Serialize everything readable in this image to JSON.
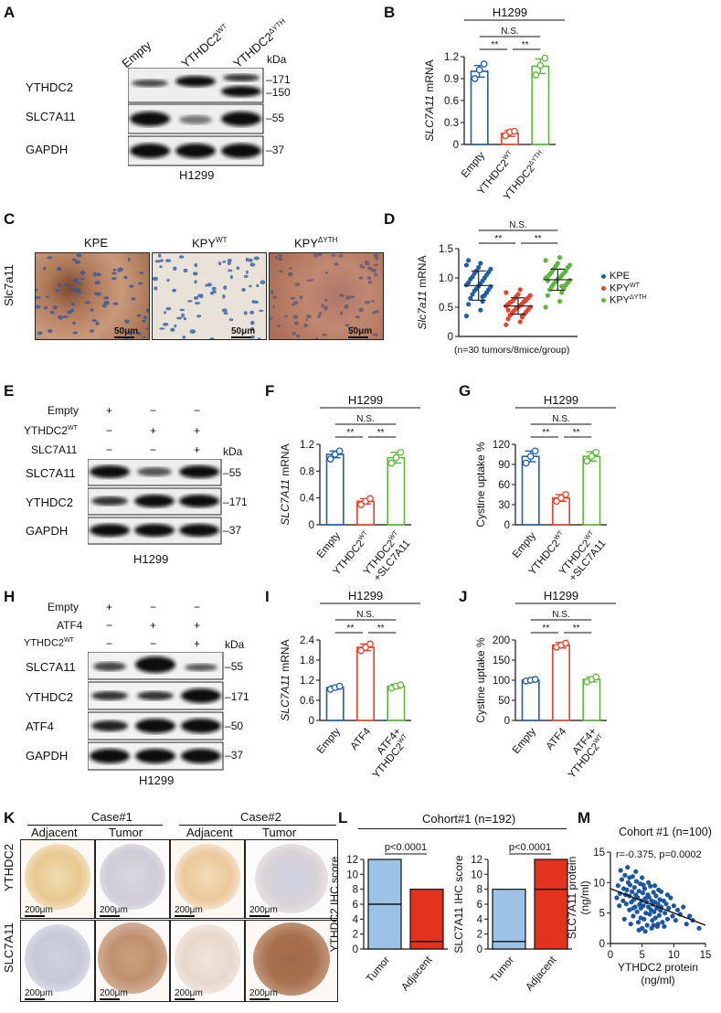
{
  "panels": {
    "A": {
      "letter": "A",
      "lanes": [
        "Empty",
        "YTHDC2WT",
        "YTHDC2ΔYTH"
      ],
      "lane_labels": {
        "empty": "Empty",
        "wt_main": "YTHDC2",
        "wt_sup": "WT",
        "dyth_main": "YTHDC2",
        "dyth_sup": "ΔYTH"
      },
      "kda_label": "kDa",
      "rows": [
        "YTHDC2",
        "SLC7A11",
        "GAPDH"
      ],
      "markers": [
        "171",
        "150",
        "55",
        "37"
      ],
      "cell_line": "H1299"
    },
    "B": {
      "letter": "B"
    },
    "C": {
      "letter": "C",
      "titles": {
        "kpe": "KPE",
        "wt_main": "KPY",
        "wt_sup": "WT",
        "dyth_main": "KPY",
        "dyth_sup": "ΔYTH"
      },
      "ylabel": "Slc7a11",
      "scalebar": "50μm"
    },
    "D": {
      "letter": "D",
      "note": "(n=30 tumors/8mice/group)",
      "legend": [
        {
          "main": "KPE",
          "sup": ""
        },
        {
          "main": "KPY",
          "sup": "WT"
        },
        {
          "main": "KPY",
          "sup": "ΔYTH"
        }
      ]
    },
    "E": {
      "letter": "E",
      "conditions": [
        "Empty",
        "YTHDC2WT",
        "SLC7A11"
      ],
      "cond_main": {
        "empty": "Empty",
        "wt_main": "YTHDC2",
        "wt_sup": "WT",
        "slc": "SLC7A11"
      },
      "signs": [
        [
          "+",
          "−",
          "−"
        ],
        [
          "−",
          "+",
          "+"
        ],
        [
          "−",
          "−",
          "+"
        ]
      ],
      "kda_label": "kDa",
      "rows": [
        "SLC7A11",
        "YTHDC2",
        "GAPDH"
      ],
      "markers": [
        "55",
        "171",
        "37"
      ],
      "cell_line": "H1299"
    },
    "F": {
      "letter": "F"
    },
    "G": {
      "letter": "G"
    },
    "H": {
      "letter": "H",
      "cond_main": {
        "empty": "Empty",
        "atf4": "ATF4",
        "wt_main": "YTHDC2",
        "wt_sup": "WT"
      },
      "signs": [
        [
          "+",
          "−",
          "−"
        ],
        [
          "−",
          "+",
          "+"
        ],
        [
          "−",
          "−",
          "+"
        ]
      ],
      "kda_label": "kDa",
      "rows": [
        "SLC7A11",
        "YTHDC2",
        "ATF4",
        "GAPDH"
      ],
      "markers": [
        "55",
        "171",
        "50",
        "37"
      ],
      "cell_line": "H1299"
    },
    "I": {
      "letter": "I"
    },
    "J": {
      "letter": "J"
    },
    "K": {
      "letter": "K",
      "cases": [
        "Case#1",
        "Case#2"
      ],
      "columns": [
        "Adjacent",
        "Tumor",
        "Adjacent",
        "Tumor"
      ],
      "rows": [
        "YTHDC2",
        "SLC7A11"
      ],
      "scalebar": "200μm"
    },
    "L": {
      "letter": "L",
      "cohort": "Cohort#1 (n=192)"
    },
    "M": {
      "letter": "M"
    }
  },
  "colors": {
    "blue": "#1f5fa8",
    "red": "#e8412c",
    "green": "#5cb83a",
    "light_blue": "#9cc3e6",
    "red_fill": "#e3321e",
    "dot_blue": "#1b56a0"
  },
  "chart_data": [
    {
      "id": "B",
      "type": "bar",
      "title": "H1299",
      "ylabel": "SLC7A11 mRNA",
      "ylabel_italic": "SLC7A11",
      "ylabel_rest": " mRNA",
      "categories": [
        {
          "main": "Empty",
          "sup": ""
        },
        {
          "main": "YTHDC2",
          "sup": "WT"
        },
        {
          "main": "YTHDC2",
          "sup": "ΔYTH"
        }
      ],
      "values": [
        1.0,
        0.15,
        1.07
      ],
      "errors": [
        0.08,
        0.04,
        0.1
      ],
      "points": [
        [
          0.9,
          1.02,
          1.1
        ],
        [
          0.12,
          0.17,
          0.18
        ],
        [
          0.95,
          1.08,
          1.18
        ]
      ],
      "ylim": [
        0,
        1.2
      ],
      "yticks": [
        "0",
        "0.3",
        "0.6",
        "0.9",
        "1.2"
      ],
      "ytick_values": [
        0,
        0.3,
        0.6,
        0.9,
        1.2
      ],
      "sig": [
        "N.S.",
        "**",
        "**"
      ]
    },
    {
      "id": "D",
      "type": "scatter",
      "ylabel": "Slc7a11 mRNA",
      "ylabel_italic": "Slc7a11",
      "ylabel_rest": "  mRNA",
      "series": [
        {
          "mean": 0.87,
          "sd": 0.25,
          "values": [
            0.35,
            0.45,
            0.55,
            0.6,
            0.65,
            0.7,
            0.72,
            0.75,
            0.78,
            0.8,
            0.82,
            0.85,
            0.86,
            0.88,
            0.9,
            0.92,
            0.95,
            0.98,
            1.0,
            1.02,
            1.05,
            1.08,
            1.1,
            1.12,
            1.15,
            1.18,
            1.22,
            1.25,
            1.3,
            0.68
          ]
        },
        {
          "mean": 0.52,
          "sd": 0.14,
          "values": [
            0.2,
            0.25,
            0.3,
            0.33,
            0.36,
            0.38,
            0.4,
            0.42,
            0.44,
            0.46,
            0.48,
            0.5,
            0.5,
            0.52,
            0.53,
            0.55,
            0.56,
            0.58,
            0.6,
            0.6,
            0.62,
            0.64,
            0.66,
            0.68,
            0.7,
            0.72,
            0.75,
            0.8,
            0.45,
            0.35
          ]
        },
        {
          "mean": 0.97,
          "sd": 0.18,
          "values": [
            0.5,
            0.6,
            0.7,
            0.75,
            0.8,
            0.82,
            0.85,
            0.88,
            0.9,
            0.92,
            0.94,
            0.96,
            0.98,
            1.0,
            1.0,
            1.02,
            1.04,
            1.06,
            1.08,
            1.1,
            1.12,
            1.15,
            1.18,
            1.2,
            1.22,
            1.25,
            1.3,
            1.35,
            0.95,
            0.86
          ]
        }
      ],
      "ylim": [
        0,
        1.5
      ],
      "yticks": [
        "0",
        "0.5",
        "1.0",
        "1.5"
      ],
      "ytick_values": [
        0,
        0.5,
        1.0,
        1.5
      ],
      "sig": [
        "N.S.",
        "**",
        "**"
      ]
    },
    {
      "id": "F",
      "type": "bar",
      "title": "H1299",
      "ylabel_italic": "SLC7A11",
      "ylabel_rest": " mRNA",
      "categories": [
        {
          "main": "Empty",
          "sup": "",
          "line2": ""
        },
        {
          "main": "YTHDC2",
          "sup": "WT",
          "line2": ""
        },
        {
          "main": "YTHDC2",
          "sup": "WT",
          "line2": "+SLC7A11"
        }
      ],
      "values": [
        1.05,
        0.35,
        1.0
      ],
      "errors": [
        0.05,
        0.04,
        0.08
      ],
      "points": [
        [
          0.98,
          1.05,
          1.1
        ],
        [
          0.3,
          0.35,
          0.39
        ],
        [
          0.92,
          1.0,
          1.08
        ]
      ],
      "ylim": [
        0,
        1.2
      ],
      "yticks": [
        "0",
        "0.4",
        "0.8",
        "1.2"
      ],
      "ytick_values": [
        0,
        0.4,
        0.8,
        1.2
      ],
      "sig": [
        "N.S.",
        "**",
        "**"
      ]
    },
    {
      "id": "G",
      "type": "bar",
      "title": "H1299",
      "ylabel_italic": "",
      "ylabel_rest": "Cystine uptake %",
      "categories": [
        {
          "main": "Empty",
          "sup": "",
          "line2": ""
        },
        {
          "main": "YTHDC2",
          "sup": "WT",
          "line2": ""
        },
        {
          "main": "YTHDC2",
          "sup": "WT",
          "line2": "+SLC7A11"
        }
      ],
      "values": [
        102,
        40,
        102
      ],
      "errors": [
        8,
        5,
        7
      ],
      "points": [
        [
          92,
          102,
          110
        ],
        [
          35,
          40,
          45
        ],
        [
          95,
          102,
          108
        ]
      ],
      "ylim": [
        0,
        120
      ],
      "yticks": [
        "0",
        "30",
        "60",
        "90",
        "120"
      ],
      "ytick_values": [
        0,
        30,
        60,
        90,
        120
      ],
      "sig": [
        "N.S.",
        "**",
        "**"
      ]
    },
    {
      "id": "I",
      "type": "bar",
      "title": "H1299",
      "ylabel_italic": "SLC7A11",
      "ylabel_rest": " mRNA",
      "categories": [
        {
          "main": "Empty",
          "sup": "",
          "line2": ""
        },
        {
          "main": "ATF4",
          "sup": "",
          "line2": ""
        },
        {
          "main": "ATF4+",
          "sup": "",
          "line2": "YTHDC2",
          "line2sup": "WT"
        }
      ],
      "values": [
        0.98,
        2.18,
        1.02
      ],
      "errors": [
        0.05,
        0.1,
        0.06
      ],
      "points": [
        [
          0.93,
          0.98,
          1.02
        ],
        [
          2.08,
          2.18,
          2.28
        ],
        [
          0.96,
          1.02,
          1.06
        ]
      ],
      "ylim": [
        0,
        2.4
      ],
      "yticks": [
        "0",
        "0.6",
        "1.2",
        "1.8",
        "2.4"
      ],
      "ytick_values": [
        0,
        0.6,
        1.2,
        1.8,
        2.4
      ],
      "sig": [
        "N.S.",
        "**",
        "**"
      ]
    },
    {
      "id": "J",
      "type": "bar",
      "title": "H1299",
      "ylabel_italic": "",
      "ylabel_rest": "Cystine uptake %",
      "categories": [
        {
          "main": "Empty",
          "sup": "",
          "line2": ""
        },
        {
          "main": "ATF4",
          "sup": "",
          "line2": ""
        },
        {
          "main": "ATF4+",
          "sup": "",
          "line2": "YTHDC2",
          "line2sup": "WT"
        }
      ],
      "values": [
        100,
        187,
        102
      ],
      "errors": [
        3,
        7,
        6
      ],
      "points": [
        [
          98,
          100,
          102
        ],
        [
          182,
          187,
          192
        ],
        [
          96,
          102,
          108
        ]
      ],
      "ylim": [
        0,
        200
      ],
      "yticks": [
        "0",
        "50",
        "100",
        "150",
        "200"
      ],
      "ytick_values": [
        0,
        50,
        100,
        150,
        200
      ],
      "sig": [
        "N.S.",
        "**",
        "**"
      ]
    },
    {
      "id": "L1",
      "type": "bar",
      "ylabel": "YTHDC2 IHC score",
      "categories": [
        "Tumor",
        "Adjacent"
      ],
      "max": [
        12,
        8
      ],
      "median": [
        6,
        1
      ],
      "min": [
        0,
        0
      ],
      "ylim": [
        0,
        12
      ],
      "yticks": [
        "0",
        "2",
        "4",
        "6",
        "8",
        "10",
        "12"
      ],
      "ytick_values": [
        0,
        2,
        4,
        6,
        8,
        10,
        12
      ],
      "pvalue": "p<0.0001"
    },
    {
      "id": "L2",
      "type": "bar",
      "ylabel": "SLC7A11 IHC score",
      "categories": [
        "Tumor",
        "Adjacent"
      ],
      "max": [
        8,
        12
      ],
      "median": [
        1,
        8
      ],
      "min": [
        0,
        0
      ],
      "ylim": [
        0,
        12
      ],
      "yticks": [
        "0",
        "2",
        "4",
        "6",
        "8",
        "10",
        "12"
      ],
      "ytick_values": [
        0,
        2,
        4,
        6,
        8,
        10,
        12
      ],
      "pvalue": "p<0.0001"
    },
    {
      "id": "M",
      "type": "scatter",
      "title": "Cohort #1 (n=100)",
      "annotation": "r=-0.375, p=0.0002",
      "xlabel": "YTHDC2 protein",
      "xlabel2": "(ng/ml)",
      "ylabel": "SLC7A11 protein",
      "ylabel2": "(ng/ml)",
      "xlim": [
        0,
        15
      ],
      "ylim": [
        0,
        15
      ],
      "xticks": [
        "0",
        "5",
        "10",
        "15"
      ],
      "xtick_values": [
        0,
        5,
        10,
        15
      ],
      "yticks": [
        "0",
        "5",
        "10",
        "15"
      ],
      "ytick_values": [
        0,
        5,
        10,
        15
      ],
      "fit": [
        [
          0,
          9.0
        ],
        [
          15,
          3.0
        ]
      ],
      "points": [
        [
          1.2,
          9.5
        ],
        [
          1.5,
          8.2
        ],
        [
          1.8,
          10.5
        ],
        [
          2.0,
          7.0
        ],
        [
          2.1,
          9.0
        ],
        [
          2.3,
          11.2
        ],
        [
          2.5,
          6.5
        ],
        [
          2.6,
          8.8
        ],
        [
          2.8,
          10.0
        ],
        [
          3.0,
          5.5
        ],
        [
          3.0,
          7.8
        ],
        [
          3.1,
          9.6
        ],
        [
          3.3,
          6.8
        ],
        [
          3.4,
          8.5
        ],
        [
          3.5,
          11.0
        ],
        [
          3.6,
          4.5
        ],
        [
          3.7,
          7.2
        ],
        [
          3.8,
          9.2
        ],
        [
          3.9,
          6.0
        ],
        [
          4.0,
          8.0
        ],
        [
          4.1,
          10.2
        ],
        [
          4.2,
          5.2
        ],
        [
          4.3,
          7.5
        ],
        [
          4.4,
          3.5
        ],
        [
          4.5,
          8.6
        ],
        [
          4.6,
          6.4
        ],
        [
          4.7,
          9.8
        ],
        [
          4.8,
          5.8
        ],
        [
          4.9,
          7.0
        ],
        [
          5.0,
          2.5
        ],
        [
          5.1,
          8.3
        ],
        [
          5.2,
          6.2
        ],
        [
          5.3,
          4.0
        ],
        [
          5.4,
          9.0
        ],
        [
          5.5,
          7.4
        ],
        [
          5.6,
          5.0
        ],
        [
          5.7,
          6.8
        ],
        [
          5.8,
          3.0
        ],
        [
          5.9,
          8.0
        ],
        [
          6.0,
          6.0
        ],
        [
          6.1,
          7.6
        ],
        [
          6.2,
          4.8
        ],
        [
          6.3,
          9.4
        ],
        [
          6.4,
          5.5
        ],
        [
          6.5,
          7.0
        ],
        [
          6.6,
          3.8
        ],
        [
          6.7,
          6.4
        ],
        [
          6.8,
          8.4
        ],
        [
          6.9,
          5.2
        ],
        [
          7.0,
          6.8
        ],
        [
          7.1,
          4.2
        ],
        [
          7.2,
          7.8
        ],
        [
          7.3,
          5.8
        ],
        [
          7.4,
          2.8
        ],
        [
          7.5,
          6.5
        ],
        [
          7.6,
          8.8
        ],
        [
          7.7,
          4.6
        ],
        [
          7.8,
          7.2
        ],
        [
          7.9,
          5.4
        ],
        [
          8.0,
          6.0
        ],
        [
          8.2,
          3.5
        ],
        [
          8.4,
          7.0
        ],
        [
          8.6,
          5.0
        ],
        [
          8.8,
          6.5
        ],
        [
          9.0,
          4.0
        ],
        [
          9.2,
          5.8
        ],
        [
          9.5,
          7.5
        ],
        [
          9.8,
          4.5
        ],
        [
          10.0,
          6.2
        ],
        [
          10.3,
          3.8
        ],
        [
          10.6,
          5.5
        ],
        [
          11.0,
          4.8
        ],
        [
          11.5,
          6.0
        ],
        [
          12.0,
          3.2
        ],
        [
          12.5,
          4.5
        ],
        [
          13.0,
          3.8
        ],
        [
          14.0,
          2.5
        ],
        [
          1.0,
          7.5
        ],
        [
          1.6,
          12.0
        ],
        [
          2.2,
          4.0
        ],
        [
          2.7,
          12.5
        ],
        [
          3.2,
          3.2
        ],
        [
          4.0,
          11.8
        ],
        [
          4.5,
          2.2
        ],
        [
          5.0,
          10.8
        ],
        [
          5.5,
          2.0
        ],
        [
          6.0,
          10.0
        ],
        [
          6.5,
          2.5
        ],
        [
          7.0,
          9.5
        ],
        [
          7.5,
          3.2
        ],
        [
          8.0,
          8.5
        ],
        [
          8.5,
          2.8
        ],
        [
          9.0,
          8.0
        ],
        [
          3.6,
          5.8
        ],
        [
          2.4,
          8.0
        ],
        [
          5.2,
          9.6
        ],
        [
          6.8,
          3.0
        ],
        [
          1.4,
          6.2
        ],
        [
          4.8,
          4.2
        ],
        [
          3.0,
          10.8
        ]
      ]
    }
  ]
}
